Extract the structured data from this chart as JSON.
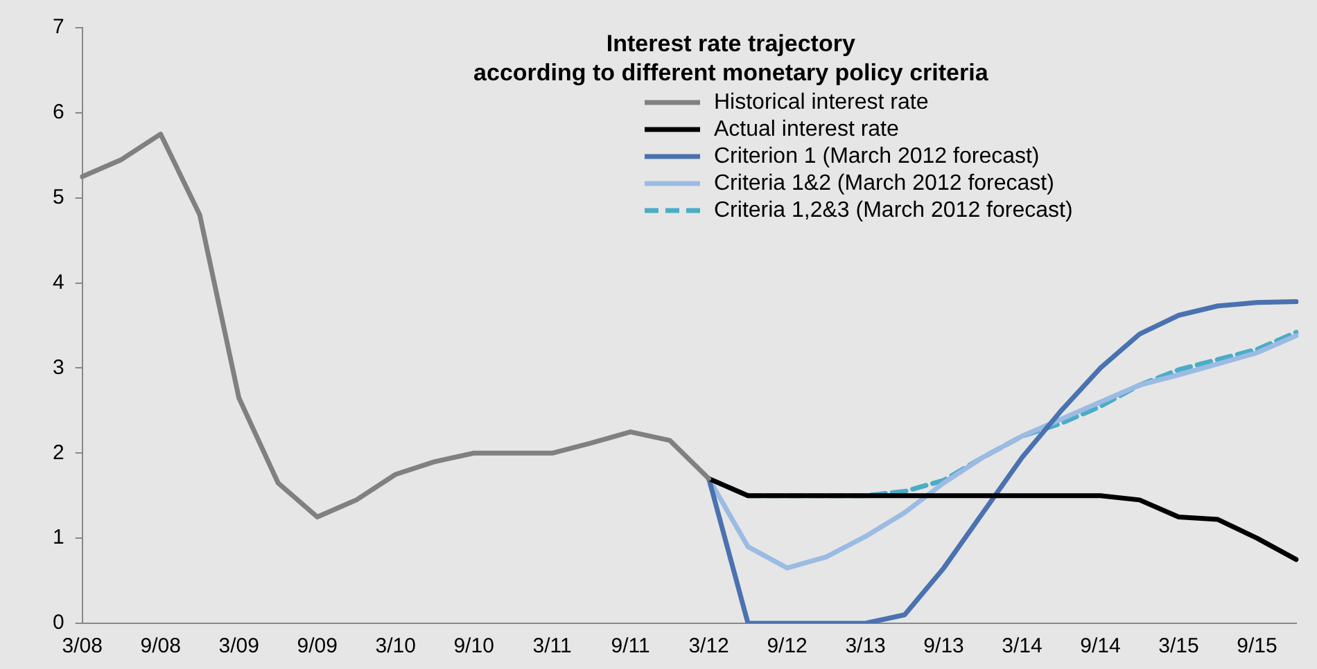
{
  "chart_data": {
    "type": "line",
    "title": "Interest rate trajectory\naccording to different monetary policy criteria",
    "categories": [
      "3/08",
      null,
      "9/08",
      null,
      "3/09",
      null,
      "9/09",
      null,
      "3/10",
      null,
      "9/10",
      null,
      "3/11",
      null,
      "9/11",
      null,
      "3/12",
      null,
      "9/12",
      null,
      "3/13",
      null,
      "9/13",
      null,
      "3/14",
      null,
      "9/14",
      null,
      "3/15",
      null,
      "9/15",
      null
    ],
    "series": [
      {
        "name": "Historical interest rate",
        "color": "#808080",
        "values": [
          5.25,
          5.45,
          5.75,
          4.8,
          2.65,
          1.65,
          1.25,
          1.45,
          1.75,
          1.9,
          2.0,
          2.0,
          2.0,
          2.12,
          2.25,
          2.15,
          1.7,
          null,
          null,
          null,
          null,
          null,
          null,
          null,
          null,
          null,
          null,
          null,
          null,
          null,
          null,
          null
        ]
      },
      {
        "name": "Actual interest rate",
        "color": "#000000",
        "values": [
          null,
          null,
          null,
          null,
          null,
          null,
          null,
          null,
          null,
          null,
          null,
          null,
          null,
          null,
          null,
          null,
          1.7,
          1.5,
          1.5,
          1.5,
          1.5,
          1.5,
          1.5,
          1.5,
          1.5,
          1.5,
          1.5,
          1.45,
          1.25,
          1.22,
          1.0,
          0.75
        ]
      },
      {
        "name": "Criterion 1 (March 2012 forecast)",
        "color": "#4a72b0",
        "values": [
          null,
          null,
          null,
          null,
          null,
          null,
          null,
          null,
          null,
          null,
          null,
          null,
          null,
          null,
          null,
          null,
          1.7,
          0.0,
          0.0,
          0.0,
          0.0,
          0.1,
          0.65,
          1.3,
          1.95,
          2.5,
          3.0,
          3.4,
          3.62,
          3.73,
          3.77,
          3.78
        ]
      },
      {
        "name": "Criteria 1&2 (March 2012 forecast)",
        "color": "#9bbbe3",
        "values": [
          null,
          null,
          null,
          null,
          null,
          null,
          null,
          null,
          null,
          null,
          null,
          null,
          null,
          null,
          null,
          null,
          1.7,
          0.9,
          0.65,
          0.78,
          1.02,
          1.3,
          1.65,
          1.95,
          2.2,
          2.4,
          2.6,
          2.8,
          2.92,
          3.05,
          3.18,
          3.38
        ]
      },
      {
        "name": "Criteria 1,2&3 (March 2012 forecast)",
        "color": "#4bacc6",
        "line_style": "dashed",
        "values": [
          null,
          null,
          null,
          null,
          null,
          null,
          null,
          null,
          null,
          null,
          null,
          null,
          null,
          null,
          null,
          null,
          1.7,
          1.5,
          1.5,
          1.5,
          1.5,
          1.55,
          1.68,
          1.95,
          2.2,
          2.35,
          2.55,
          2.8,
          2.98,
          3.1,
          3.22,
          3.42
        ]
      }
    ],
    "ylim": [
      0,
      7
    ],
    "yticks": [
      0,
      1,
      2,
      3,
      4,
      5,
      6,
      7
    ],
    "grid": false,
    "legend": "top right",
    "marker": "none"
  }
}
